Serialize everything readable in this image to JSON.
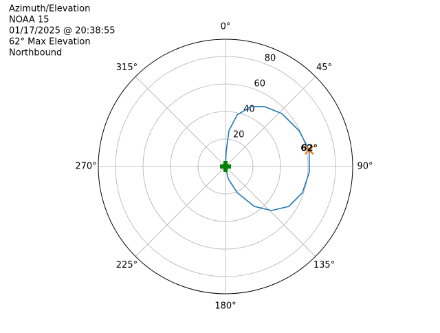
{
  "chart_data": {
    "type": "polar",
    "title_lines": [
      "Azimuth/Elevation",
      "NOAA 15",
      "01/17/2025 @ 20:38:55",
      "62° Max Elevation",
      "Northbound"
    ],
    "theta_direction": "clockwise",
    "theta_zero": "N",
    "thetaticks": [
      {
        "value": 0,
        "label": "0°"
      },
      {
        "value": 45,
        "label": "45°"
      },
      {
        "value": 90,
        "label": "90°"
      },
      {
        "value": 135,
        "label": "135°"
      },
      {
        "value": 180,
        "label": "180°"
      },
      {
        "value": 225,
        "label": "225°"
      },
      {
        "value": 270,
        "label": "270°"
      },
      {
        "value": 315,
        "label": "315°"
      }
    ],
    "rlim": [
      0,
      92.5
    ],
    "rticks": [
      20,
      40,
      60,
      80
    ],
    "grid": true,
    "series": [
      {
        "color": "#1f77b4",
        "azimuth": [
          0,
          2.6,
          5.5,
          12.8,
          23,
          33.2,
          46.8,
          64.1,
          78.9,
          93.8,
          108.7,
          122.2,
          133.7,
          144.1,
          155.9,
          167.5,
          180
        ],
        "elevation": [
          0,
          11,
          26.1,
          38.5,
          47.3,
          52,
          56.2,
          59.5,
          62,
          61.1,
          59.1,
          54.4,
          46.3,
          35.8,
          20.8,
          9.2,
          0
        ]
      }
    ],
    "max_marker": {
      "azimuth": 78.9,
      "elevation": 62,
      "label": "62°",
      "color": "#ff7f0e"
    },
    "start_marker": {
      "azimuth": 0,
      "elevation": 0,
      "color": "#008000"
    }
  }
}
